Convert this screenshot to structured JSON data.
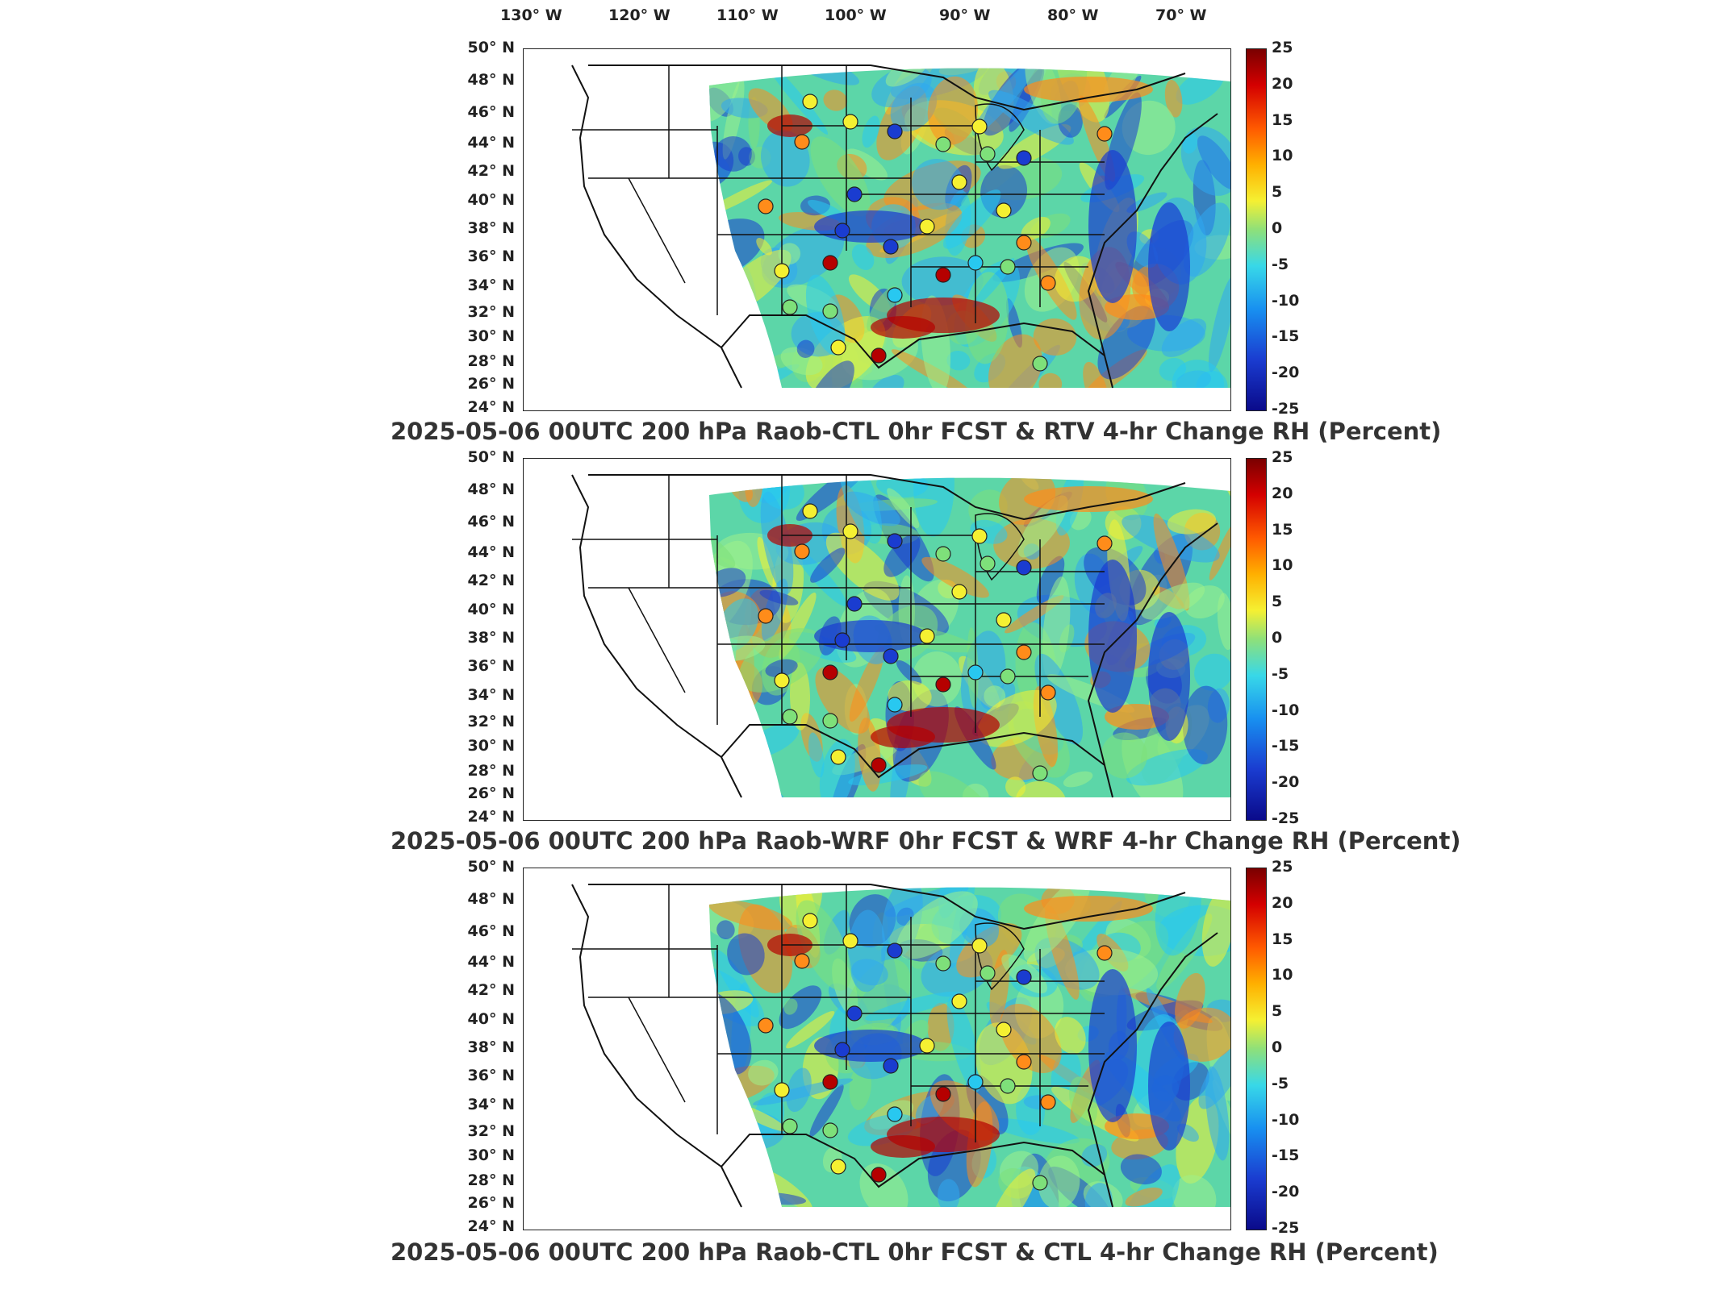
{
  "longitude_labels": [
    "130° W",
    "120° W",
    "110° W",
    "100° W",
    "90° W",
    "80° W",
    "70° W"
  ],
  "latitude_labels": [
    "50° N",
    "48° N",
    "46° N",
    "44° N",
    "42° N",
    "40° N",
    "38° N",
    "36° N",
    "34° N",
    "32° N",
    "30° N",
    "28° N",
    "26° N",
    "24° N"
  ],
  "colorbar_ticks": [
    "25",
    "20",
    "15",
    "10",
    "5",
    "0",
    "-5",
    "-10",
    "-15",
    "-20",
    "-25"
  ],
  "colorbar_range": [
    -25,
    25
  ],
  "colormap": "jet",
  "colors": {
    "red": "#b50000",
    "orange": "#ff8c1a",
    "yellow": "#f5f032",
    "green": "#7ee07a",
    "cyan": "#28c8f0",
    "blue": "#1a3cd0"
  },
  "panels": [
    {
      "title": "2025-05-06 00UTC 200 hPa Raob-CTL 0hr FCST & RTV 4-hr Change RH (Percent)"
    },
    {
      "title": "2025-05-06 00UTC 200 hPa Raob-WRF 0hr FCST & WRF 4-hr Change RH (Percent)"
    },
    {
      "title": "2025-05-06 00UTC 200 hPa Raob-CTL 0hr FCST & CTL 4-hr Change RH (Percent)"
    }
  ]
}
